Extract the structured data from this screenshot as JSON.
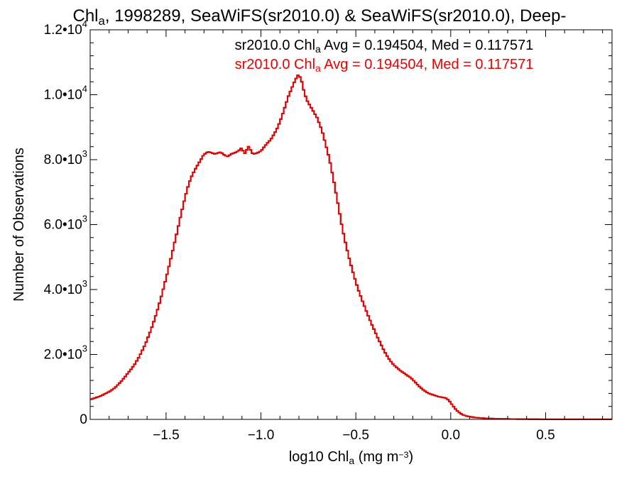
{
  "chart_data": {
    "type": "histogram-step",
    "title": {
      "parts": [
        {
          "text": "Chl",
          "sub": false
        },
        {
          "text": "a",
          "sub": true
        },
        {
          "text": ", 1998289, SeaWiFS(sr2010.0) & SeaWiFS(sr2010.0), Deep-",
          "sub": false
        }
      ]
    },
    "xlabel": {
      "parts": [
        {
          "text": "log10 Chl",
          "sup": false,
          "sub": false
        },
        {
          "text": "a",
          "sub": true
        },
        {
          "text": " (mg m",
          "sub": false
        },
        {
          "text": "−3",
          "sup": true
        },
        {
          "text": ")",
          "sub": false
        }
      ]
    },
    "ylabel": "Number of Observations",
    "xlim": [
      -1.9,
      0.85
    ],
    "ylim": [
      0,
      12000
    ],
    "x_major_ticks": [
      -1.5,
      -1.0,
      -0.5,
      0.0,
      0.5
    ],
    "x_tick_labels": [
      "−1.5",
      "−1.0",
      "−0.5",
      "0.0",
      "0.5"
    ],
    "x_minor_step": 0.1,
    "y_major_ticks": [
      0,
      2000,
      4000,
      6000,
      8000,
      10000,
      12000
    ],
    "y_tick_labels": [
      {
        "mantissa": "0",
        "exp": ""
      },
      {
        "mantissa": "2.0•10",
        "exp": "3"
      },
      {
        "mantissa": "4.0•10",
        "exp": "3"
      },
      {
        "mantissa": "6.0•10",
        "exp": "3"
      },
      {
        "mantissa": "8.0•10",
        "exp": "3"
      },
      {
        "mantissa": "1.0•10",
        "exp": "4"
      },
      {
        "mantissa": "1.2•10",
        "exp": "4"
      }
    ],
    "y_minor_step": 400,
    "grid": false,
    "annotations": [
      {
        "color": "#000000",
        "parts": [
          {
            "text": "sr2010.0 Chl",
            "sub": false
          },
          {
            "text": "a",
            "sub": true
          },
          {
            "text": " Avg = 0.194504, Med = 0.117571",
            "sub": false
          }
        ]
      },
      {
        "color": "#ee0000",
        "parts": [
          {
            "text": "sr2010.0 Chl",
            "sub": false
          },
          {
            "text": "a",
            "sub": true
          },
          {
            "text": " Avg = 0.194504, Med = 0.117571",
            "sub": false
          }
        ]
      }
    ],
    "series": [
      {
        "color": "#000000",
        "bin_width": 0.01,
        "x_start": -1.9,
        "values": [
          620,
          640,
          660,
          680,
          700,
          720,
          750,
          780,
          810,
          840,
          870,
          910,
          950,
          1000,
          1060,
          1120,
          1180,
          1250,
          1320,
          1400,
          1470,
          1540,
          1620,
          1700,
          1800,
          1900,
          2010,
          2130,
          2250,
          2380,
          2530,
          2680,
          2840,
          3010,
          3190,
          3380,
          3580,
          3790,
          4010,
          4240,
          4470,
          4710,
          4950,
          5200,
          5450,
          5700,
          5960,
          6220,
          6470,
          6720,
          6950,
          7160,
          7340,
          7490,
          7610,
          7720,
          7820,
          7920,
          8020,
          8120,
          8180,
          8220,
          8240,
          8220,
          8200,
          8180,
          8190,
          8210,
          8230,
          8200,
          8150,
          8120,
          8100,
          8140,
          8180,
          8200,
          8220,
          8250,
          8290,
          8350,
          8280,
          8200,
          8300,
          8400,
          8300,
          8200,
          8180,
          8200,
          8220,
          8250,
          8300,
          8380,
          8450,
          8520,
          8580,
          8650,
          8750,
          8850,
          8960,
          9100,
          9250,
          9420,
          9600,
          9780,
          9960,
          10100,
          10240,
          10380,
          10500,
          10600,
          10550,
          10400,
          10150,
          9950,
          9800,
          9700,
          9600,
          9500,
          9400,
          9300,
          9150,
          9000,
          8820,
          8600,
          8380,
          8150,
          7900,
          7600,
          7300,
          6980,
          6660,
          6330,
          6010,
          5720,
          5450,
          5200,
          4960,
          4740,
          4530,
          4330,
          4140,
          3960,
          3800,
          3640,
          3490,
          3340,
          3190,
          3050,
          2910,
          2780,
          2650,
          2520,
          2400,
          2280,
          2160,
          2050,
          1950,
          1860,
          1780,
          1710,
          1650,
          1600,
          1550,
          1500,
          1460,
          1420,
          1380,
          1340,
          1300,
          1250,
          1190,
          1130,
          1070,
          1010,
          960,
          910,
          870,
          830,
          800,
          780,
          760,
          740,
          720,
          700,
          690,
          680,
          670,
          650,
          610,
          550,
          470,
          390,
          320,
          260,
          210,
          170,
          140,
          120,
          100,
          90,
          80,
          70,
          60,
          55,
          50,
          45,
          40,
          37,
          34,
          31,
          28,
          26,
          24,
          22,
          20,
          18,
          17,
          16,
          15,
          14,
          13,
          12,
          11,
          10,
          10,
          9,
          9,
          8,
          8,
          7,
          7,
          6,
          6,
          6,
          5,
          5,
          5,
          4,
          4,
          4,
          4,
          3,
          3,
          3,
          3,
          3,
          3,
          3,
          3,
          3,
          3,
          3,
          3,
          3,
          3,
          3,
          3,
          3,
          3,
          3,
          3,
          3,
          3,
          3,
          3,
          3,
          3,
          3,
          3,
          3,
          3,
          3,
          3,
          3,
          3
        ]
      },
      {
        "color": "#ee0000",
        "bin_width": 0.01,
        "x_start": -1.9,
        "values": [
          620,
          640,
          660,
          680,
          700,
          720,
          750,
          780,
          810,
          840,
          870,
          910,
          950,
          1000,
          1060,
          1120,
          1180,
          1250,
          1320,
          1400,
          1470,
          1540,
          1620,
          1700,
          1800,
          1900,
          2010,
          2130,
          2250,
          2380,
          2530,
          2680,
          2840,
          3010,
          3190,
          3380,
          3580,
          3790,
          4010,
          4240,
          4470,
          4710,
          4950,
          5200,
          5450,
          5700,
          5960,
          6220,
          6470,
          6720,
          6950,
          7160,
          7340,
          7490,
          7610,
          7720,
          7820,
          7920,
          8020,
          8120,
          8180,
          8220,
          8240,
          8220,
          8200,
          8180,
          8190,
          8210,
          8230,
          8200,
          8150,
          8120,
          8100,
          8140,
          8180,
          8200,
          8220,
          8250,
          8290,
          8350,
          8280,
          8200,
          8300,
          8400,
          8300,
          8200,
          8180,
          8200,
          8220,
          8250,
          8300,
          8380,
          8450,
          8520,
          8580,
          8650,
          8750,
          8850,
          8960,
          9100,
          9250,
          9420,
          9600,
          9780,
          9960,
          10100,
          10240,
          10380,
          10500,
          10600,
          10550,
          10400,
          10150,
          9950,
          9800,
          9700,
          9600,
          9500,
          9400,
          9300,
          9150,
          9000,
          8820,
          8600,
          8380,
          8150,
          7900,
          7600,
          7300,
          6980,
          6660,
          6330,
          6010,
          5720,
          5450,
          5200,
          4960,
          4740,
          4530,
          4330,
          4140,
          3960,
          3800,
          3640,
          3490,
          3340,
          3190,
          3050,
          2910,
          2780,
          2650,
          2520,
          2400,
          2280,
          2160,
          2050,
          1950,
          1860,
          1780,
          1710,
          1650,
          1600,
          1550,
          1500,
          1460,
          1420,
          1380,
          1340,
          1300,
          1250,
          1190,
          1130,
          1070,
          1010,
          960,
          910,
          870,
          830,
          800,
          780,
          760,
          740,
          720,
          700,
          690,
          680,
          670,
          650,
          610,
          550,
          470,
          390,
          320,
          260,
          210,
          170,
          140,
          120,
          100,
          90,
          80,
          70,
          60,
          55,
          50,
          45,
          40,
          37,
          34,
          31,
          28,
          26,
          24,
          22,
          20,
          18,
          17,
          16,
          15,
          14,
          13,
          12,
          11,
          10,
          10,
          9,
          9,
          8,
          8,
          7,
          7,
          6,
          6,
          6,
          5,
          5,
          5,
          4,
          4,
          4,
          4,
          3,
          3,
          3,
          3,
          3,
          3,
          3,
          3,
          3,
          3,
          3,
          3,
          3,
          3,
          3,
          3,
          3,
          3,
          3,
          3,
          3,
          3,
          3,
          3,
          3,
          3,
          3,
          3,
          3,
          3,
          3,
          3,
          3,
          3
        ]
      }
    ]
  }
}
